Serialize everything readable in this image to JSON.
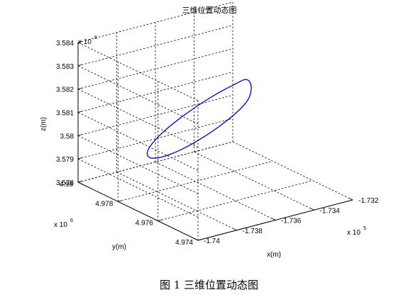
{
  "chart_data": {
    "type": "line",
    "title": "三维位置动态图",
    "xlabel": "x(m)",
    "ylabel": "y(m)",
    "zlabel": "z(m)",
    "x_multiplier": "x 10",
    "x_exponent": "5",
    "y_multiplier": "x 10",
    "y_exponent": "6",
    "z_multiplier": "x 10",
    "z_exponent": "6",
    "xlim": [
      -174000,
      -173200
    ],
    "ylim": [
      4974000,
      4980000
    ],
    "zlim": [
      3578000,
      3584000
    ],
    "x_ticks": [
      -174000,
      -173800,
      -173600,
      -173400,
      -173200
    ],
    "x_tick_labels": [
      "-1.74",
      "-1.738",
      "-1.736",
      "-1.734",
      "-1.732"
    ],
    "y_ticks": [
      4974000,
      4976000,
      4978000,
      4980000
    ],
    "y_tick_labels": [
      "4.974",
      "4.976",
      "4.978",
      "4.98"
    ],
    "z_ticks": [
      3578000,
      3579000,
      3580000,
      3581000,
      3582000,
      3583000,
      3584000
    ],
    "z_tick_labels": [
      "3.578",
      "3.579",
      "3.58",
      "3.581",
      "3.582",
      "3.583",
      "3.584"
    ],
    "grid": true,
    "line_color": "#0000cc",
    "series": [
      {
        "name": "",
        "shape": "closed ellipse",
        "x": [
          -173380,
          -173411,
          -173509,
          -173633,
          -173743,
          -173808,
          -173810,
          -173749,
          -173644,
          -173523,
          -173420,
          -173379,
          -173380
        ],
        "y": [
          4977560,
          4977860,
          4978180,
          4978410,
          4978490,
          4978390,
          4978130,
          4977790,
          4977470,
          4977250,
          4977210,
          4977340,
          4977560
        ],
        "z": [
          3582080,
          3581820,
          3581300,
          3580640,
          3580010,
          3579560,
          3579400,
          3579580,
          3580060,
          3580700,
          3581320,
          3581800,
          3582080
        ]
      }
    ]
  },
  "caption": "图 1  三维位置动态图"
}
